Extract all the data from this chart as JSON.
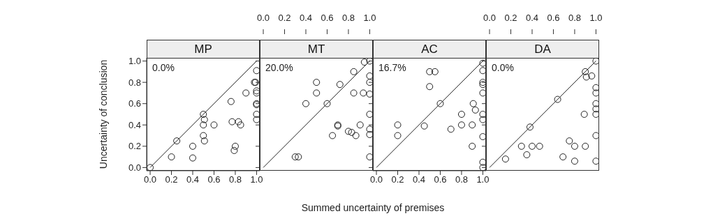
{
  "chart_data": [
    {
      "type": "scatter",
      "title": "MP",
      "ylabel": "Uncertainty of conclusion",
      "xlabel": "Summed uncertainty of premises",
      "annotations": [
        "0.0%"
      ],
      "marker": "circle",
      "xlim": [
        -0.033,
        1.03
      ],
      "xticks": [
        {
          "value": 0,
          "label": "0.0"
        },
        {
          "value": 0.2,
          "label": "0.2"
        },
        {
          "value": 0.4,
          "label": "0.4"
        },
        {
          "value": 0.6,
          "label": "0.6"
        },
        {
          "value": 0.8,
          "label": "0.8"
        },
        {
          "value": 1,
          "label": "1.0"
        }
      ],
      "ylim": [
        -0.03,
        1.03
      ],
      "yticks": [
        {
          "value": 0,
          "label": "0.0"
        },
        {
          "value": 0.2,
          "label": "0.2"
        },
        {
          "value": 0.4,
          "label": "0.4"
        },
        {
          "value": 0.6,
          "label": "0.6"
        },
        {
          "value": 0.8,
          "label": "0.8"
        },
        {
          "value": 1,
          "label": "1.0"
        }
      ],
      "series": [
        {
          "type": "scatter",
          "color": "#222222",
          "x": [
            0,
            0.2,
            0.25,
            0.4,
            0.4,
            0.5,
            0.51,
            0.5,
            0.5,
            0.51,
            0.6,
            0.76,
            0.77,
            0.83,
            0.85,
            0.8,
            0.79,
            0.9,
            0.98,
            0.99,
            1,
            1,
            1,
            1,
            1,
            1,
            1
          ],
          "values": [
            0,
            0.1,
            0.25,
            0.2,
            0.09,
            0.5,
            0.45,
            0.4,
            0.3,
            0.25,
            0.4,
            0.62,
            0.43,
            0.43,
            0.4,
            0.2,
            0.16,
            0.7,
            0.8,
            0.8,
            0.91,
            0.72,
            0.7,
            0.6,
            0.59,
            0.5,
            0.45
          ]
        },
        {
          "type": "line",
          "marker": "none",
          "color": "#222222",
          "x": [
            0,
            1
          ],
          "values": [
            0,
            1
          ]
        }
      ]
    },
    {
      "type": "scatter",
      "title": "MT",
      "annotations": [
        "20.0%"
      ],
      "marker": "circle",
      "tick_labels": "x",
      "xlim": [
        -0.033,
        1.03
      ],
      "xticks": [
        {
          "value": 0,
          "label": "0.0"
        },
        {
          "value": 0.2,
          "label": "0.2"
        },
        {
          "value": 0.4,
          "label": "0.4"
        },
        {
          "value": 0.6,
          "label": "0.6"
        },
        {
          "value": 0.8,
          "label": "0.8"
        },
        {
          "value": 1,
          "label": "1.0"
        }
      ],
      "ylim": [
        -0.03,
        1.03
      ],
      "yticks": [
        {
          "value": 0,
          "label": null
        },
        {
          "value": 0.2,
          "label": null
        },
        {
          "value": 0.4,
          "label": null
        },
        {
          "value": 0.6,
          "label": null
        },
        {
          "value": 0.8,
          "label": null
        },
        {
          "value": 1,
          "label": null
        }
      ],
      "series": [
        {
          "type": "scatter",
          "color": "#222222",
          "x": [
            0.3,
            0.33,
            0.4,
            0.5,
            0.5,
            0.6,
            0.72,
            0.7,
            0.7,
            0.65,
            0.8,
            0.83,
            0.87,
            0.91,
            0.85,
            0.85,
            0.94,
            0.95,
            1,
            1,
            1,
            1,
            1,
            1,
            1,
            1
          ],
          "values": [
            0.1,
            0.1,
            0.6,
            0.8,
            0.7,
            0.6,
            0.78,
            0.4,
            0.39,
            0.3,
            0.34,
            0.33,
            0.3,
            0.4,
            0.9,
            0.7,
            0.7,
            0.99,
            1,
            0.86,
            0.8,
            0.69,
            0.5,
            0.36,
            0.31,
            0.1
          ]
        },
        {
          "type": "line",
          "marker": "none",
          "color": "#222222",
          "x": [
            0,
            1
          ],
          "values": [
            0,
            1
          ]
        }
      ]
    },
    {
      "type": "scatter",
      "title": "AC",
      "annotations": [
        "16.7%"
      ],
      "marker": "circle",
      "tick_labels": "x",
      "xlim": [
        -0.033,
        1.03
      ],
      "xticks": [
        {
          "value": 0,
          "label": "0.0"
        },
        {
          "value": 0.2,
          "label": "0.2"
        },
        {
          "value": 0.4,
          "label": "0.4"
        },
        {
          "value": 0.6,
          "label": "0.6"
        },
        {
          "value": 0.8,
          "label": "0.8"
        },
        {
          "value": 1,
          "label": "1.0"
        }
      ],
      "ylim": [
        -0.03,
        1.03
      ],
      "yticks": [
        {
          "value": 0,
          "label": null
        },
        {
          "value": 0.2,
          "label": null
        },
        {
          "value": 0.4,
          "label": null
        },
        {
          "value": 0.6,
          "label": null
        },
        {
          "value": 0.8,
          "label": null
        },
        {
          "value": 1,
          "label": null
        }
      ],
      "series": [
        {
          "type": "scatter",
          "color": "#222222",
          "x": [
            0.2,
            0.2,
            0.45,
            0.5,
            0.55,
            0.5,
            0.6,
            0.7,
            0.8,
            0.8,
            0.9,
            0.91,
            0.93,
            0.9,
            1,
            1,
            1,
            1,
            1,
            1,
            1,
            1,
            1,
            1
          ],
          "values": [
            0.4,
            0.3,
            0.39,
            0.9,
            0.9,
            0.76,
            0.6,
            0.36,
            0.5,
            0.4,
            0.4,
            0.6,
            0.54,
            0.2,
            0.98,
            0.91,
            0.8,
            0.78,
            0.7,
            0.5,
            0.45,
            0.29,
            0.05,
            0
          ]
        },
        {
          "type": "line",
          "marker": "none",
          "color": "#222222",
          "x": [
            0,
            1
          ],
          "values": [
            0,
            1
          ]
        }
      ]
    },
    {
      "type": "scatter",
      "title": "DA",
      "annotations": [
        "0.0%"
      ],
      "marker": "circle",
      "tick_labels": "x",
      "xlim": [
        -0.033,
        1.03
      ],
      "xticks": [
        {
          "value": 0,
          "label": "0.0"
        },
        {
          "value": 0.2,
          "label": "0.2"
        },
        {
          "value": 0.4,
          "label": "0.4"
        },
        {
          "value": 0.6,
          "label": "0.6"
        },
        {
          "value": 0.8,
          "label": "0.8"
        },
        {
          "value": 1,
          "label": "1.0"
        }
      ],
      "ylim": [
        -0.03,
        1.03
      ],
      "yticks": [
        {
          "value": 0,
          "label": null
        },
        {
          "value": 0.2,
          "label": null
        },
        {
          "value": 0.4,
          "label": null
        },
        {
          "value": 0.6,
          "label": null
        },
        {
          "value": 0.8,
          "label": null
        },
        {
          "value": 1,
          "label": null
        }
      ],
      "series": [
        {
          "type": "scatter",
          "color": "#222222",
          "x": [
            0.15,
            0.3,
            0.35,
            0.4,
            0.47,
            0.38,
            0.64,
            0.69,
            0.75,
            0.8,
            0.8,
            0.9,
            0.89,
            0.9,
            0.91,
            0.96,
            1,
            1,
            1,
            1,
            1,
            1,
            1,
            1
          ],
          "values": [
            0.08,
            0.2,
            0.12,
            0.2,
            0.2,
            0.38,
            0.64,
            0.1,
            0.25,
            0.2,
            0.06,
            0.2,
            0.5,
            0.9,
            0.85,
            0.86,
            1,
            0.75,
            0.7,
            0.6,
            0.55,
            0.5,
            0.3,
            0.06
          ]
        },
        {
          "type": "line",
          "marker": "none",
          "color": "#222222",
          "x": [
            0,
            1
          ],
          "values": [
            0,
            1
          ]
        }
      ]
    }
  ]
}
